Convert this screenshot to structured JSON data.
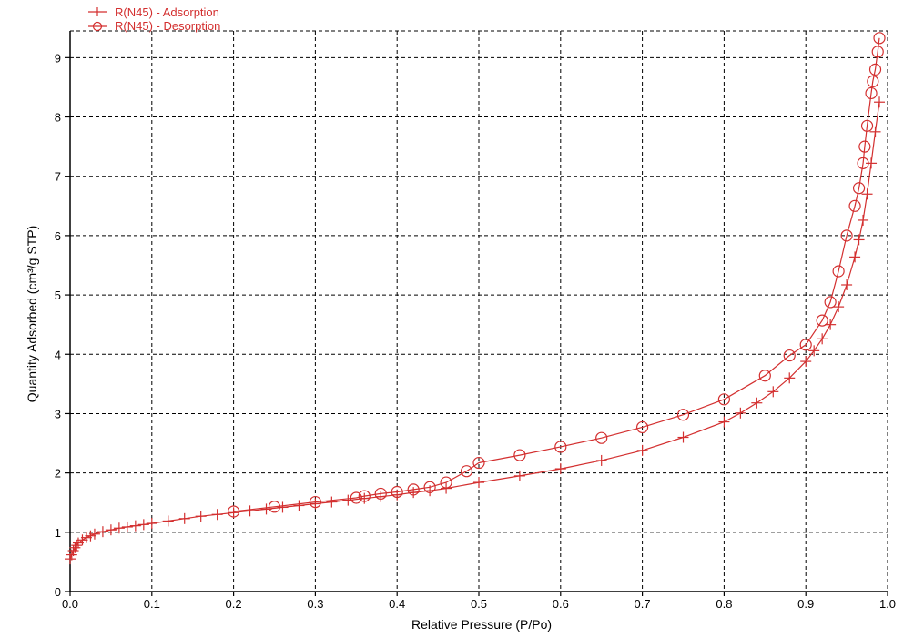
{
  "colors": {
    "series": "#d32f2f",
    "grid": "#000000",
    "axis": "#000000",
    "background": "#ffffff"
  },
  "chart_data": {
    "type": "line",
    "title": "",
    "xlabel": "Relative Pressure (P/Po)",
    "ylabel": "Quantity Adsorbed (cm³/g STP)",
    "xlim": [
      0.0,
      1.0
    ],
    "ylim": [
      0,
      9.45
    ],
    "x_ticks": [
      0.0,
      0.1,
      0.2,
      0.3,
      0.4,
      0.5,
      0.6,
      0.7,
      0.8,
      0.9,
      1.0
    ],
    "x_tick_labels": [
      "0.0",
      "0.1",
      "0.2",
      "0.3",
      "0.4",
      "0.5",
      "0.6",
      "0.7",
      "0.8",
      "0.9",
      "1.0"
    ],
    "y_ticks": [
      0,
      1,
      2,
      3,
      4,
      5,
      6,
      7,
      8,
      9
    ],
    "y_tick_labels": [
      "0",
      "1",
      "2",
      "3",
      "4",
      "5",
      "6",
      "7",
      "8",
      "9"
    ],
    "grid": true,
    "grid_style": "dashed",
    "legend_position": "top-left",
    "series": [
      {
        "name": "R(N45) - Adsorption",
        "marker": "plus",
        "x": [
          0.0,
          0.002,
          0.004,
          0.006,
          0.008,
          0.01,
          0.015,
          0.02,
          0.025,
          0.03,
          0.04,
          0.05,
          0.06,
          0.07,
          0.08,
          0.09,
          0.1,
          0.12,
          0.14,
          0.16,
          0.18,
          0.2,
          0.22,
          0.24,
          0.26,
          0.28,
          0.3,
          0.32,
          0.34,
          0.36,
          0.38,
          0.4,
          0.42,
          0.44,
          0.46,
          0.5,
          0.55,
          0.6,
          0.65,
          0.7,
          0.75,
          0.8,
          0.82,
          0.84,
          0.86,
          0.88,
          0.9,
          0.91,
          0.92,
          0.93,
          0.94,
          0.95,
          0.96,
          0.965,
          0.97,
          0.975,
          0.98,
          0.985,
          0.99
        ],
        "y": [
          0.55,
          0.62,
          0.69,
          0.74,
          0.78,
          0.82,
          0.87,
          0.91,
          0.94,
          0.97,
          1.01,
          1.04,
          1.07,
          1.09,
          1.11,
          1.13,
          1.15,
          1.19,
          1.23,
          1.27,
          1.3,
          1.33,
          1.36,
          1.39,
          1.42,
          1.45,
          1.48,
          1.51,
          1.54,
          1.57,
          1.6,
          1.63,
          1.67,
          1.7,
          1.74,
          1.84,
          1.95,
          2.07,
          2.21,
          2.38,
          2.6,
          2.86,
          3.01,
          3.18,
          3.37,
          3.6,
          3.88,
          4.06,
          4.26,
          4.5,
          4.8,
          5.17,
          5.64,
          5.93,
          6.26,
          6.7,
          7.22,
          7.75,
          8.25
        ]
      },
      {
        "name": "R(N45) - Desorption",
        "marker": "circle",
        "x": [
          0.99,
          0.988,
          0.985,
          0.982,
          0.98,
          0.975,
          0.972,
          0.97,
          0.965,
          0.96,
          0.95,
          0.94,
          0.93,
          0.92,
          0.9,
          0.88,
          0.85,
          0.8,
          0.75,
          0.7,
          0.65,
          0.6,
          0.55,
          0.5,
          0.485,
          0.46,
          0.44,
          0.42,
          0.4,
          0.38,
          0.36,
          0.35,
          0.3,
          0.25,
          0.2
        ],
        "y": [
          9.33,
          9.1,
          8.8,
          8.6,
          8.4,
          7.85,
          7.5,
          7.22,
          6.8,
          6.5,
          6.0,
          5.4,
          4.88,
          4.57,
          4.16,
          3.98,
          3.64,
          3.24,
          2.98,
          2.77,
          2.59,
          2.44,
          2.3,
          2.17,
          2.03,
          1.84,
          1.76,
          1.72,
          1.68,
          1.65,
          1.61,
          1.58,
          1.51,
          1.43,
          1.35
        ]
      }
    ]
  }
}
